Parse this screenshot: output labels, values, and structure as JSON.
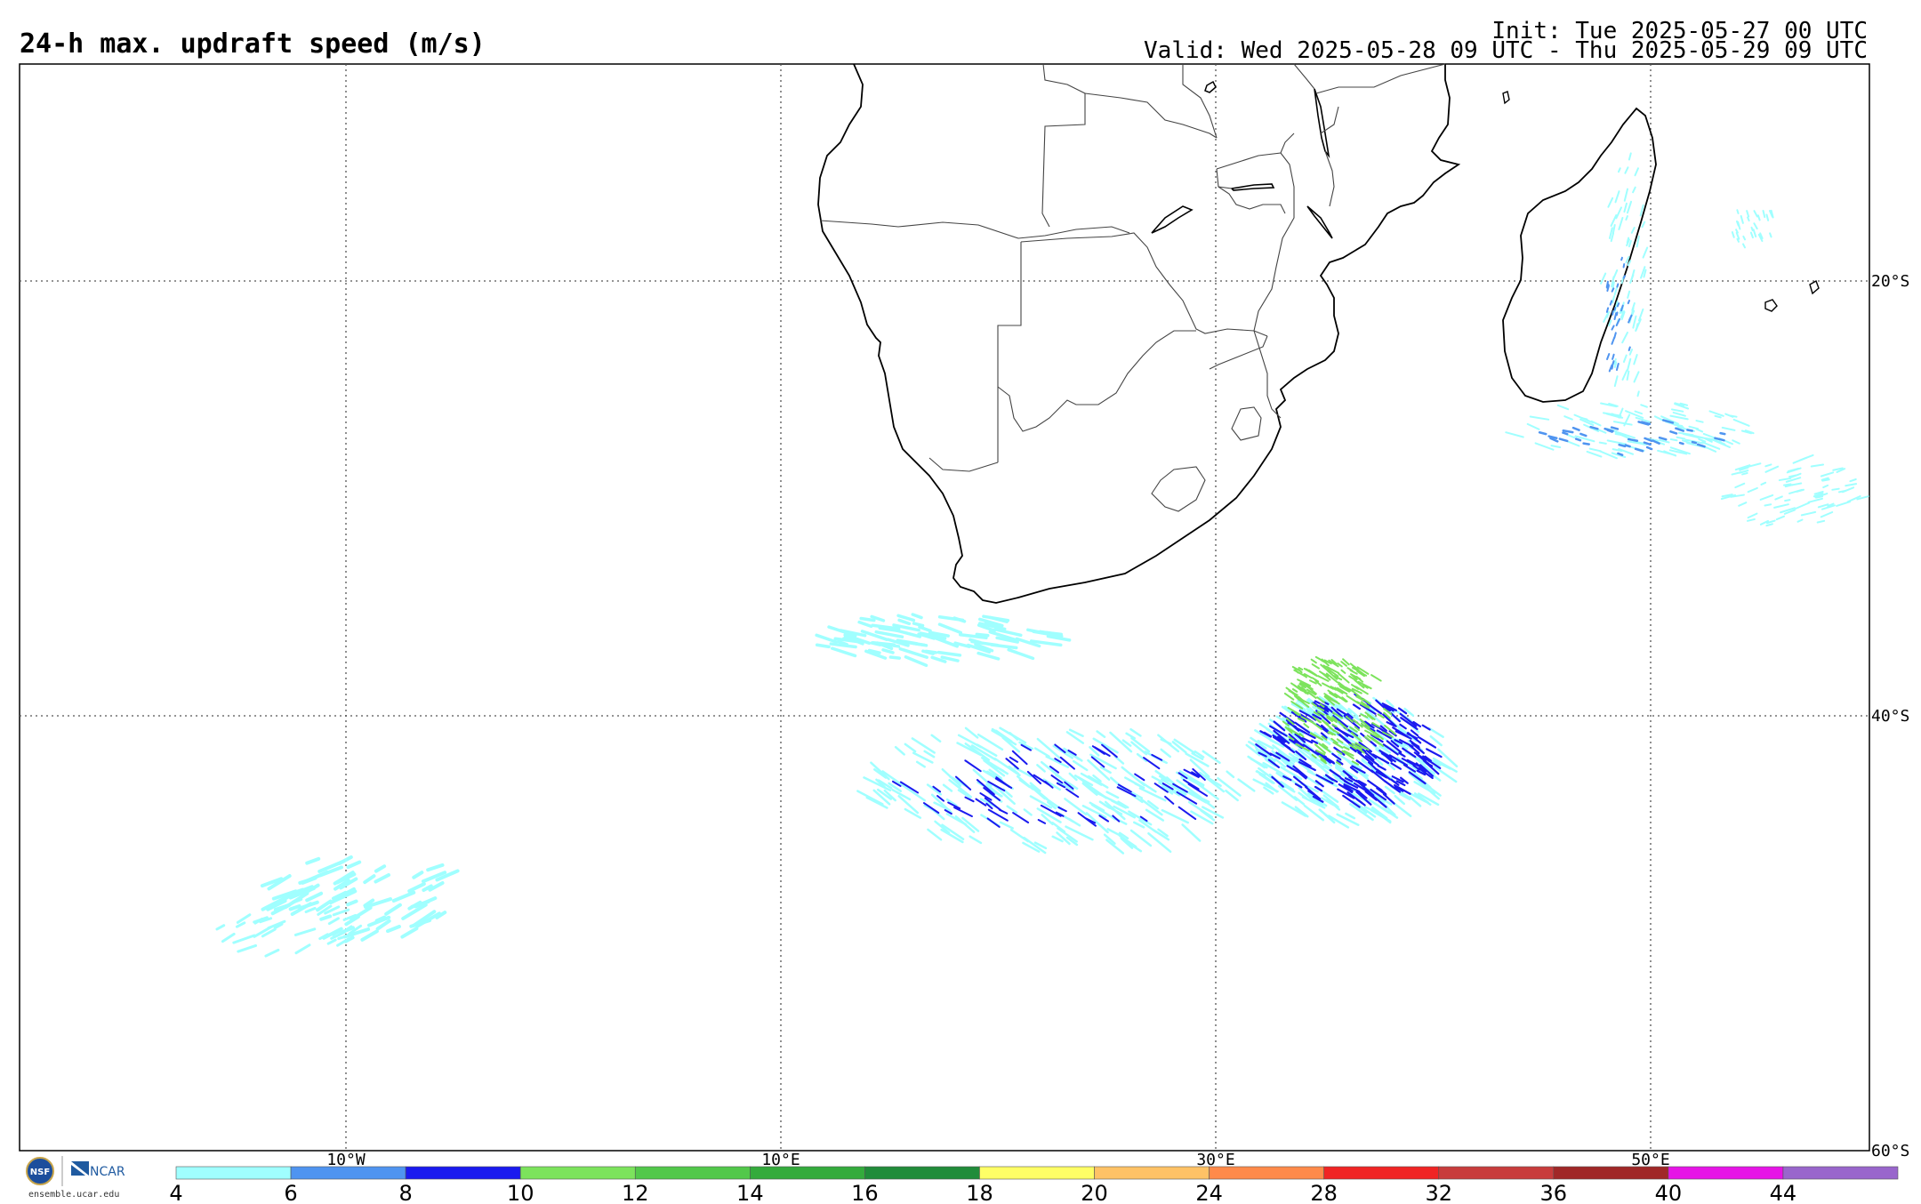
{
  "header": {
    "title": "24-h max. updraft speed (m/s)",
    "init": "Init: Tue 2025-05-27 00 UTC",
    "valid": "Valid: Wed 2025-05-28 09 UTC - Thu 2025-05-29 09 UTC"
  },
  "map": {
    "lon_labels": [
      "10°W",
      "10°E",
      "30°E",
      "50°E"
    ],
    "lat_labels": [
      "20°S",
      "40°S",
      "60°S"
    ]
  },
  "colorbar": {
    "ticks": [
      "4",
      "6",
      "8",
      "10",
      "12",
      "14",
      "16",
      "18",
      "20",
      "24",
      "28",
      "32",
      "36",
      "40",
      "44"
    ],
    "colors": [
      "#a0ffff",
      "#4f94f0",
      "#1a1aef",
      "#7ce35c",
      "#52c84a",
      "#34ab3c",
      "#208c3a",
      "#ffff66",
      "#ffc266",
      "#ff8a4a",
      "#f02424",
      "#c83c3c",
      "#a02828",
      "#e614e6",
      "#9966cc"
    ]
  },
  "logos": {
    "nsf": "NSF",
    "ncar": "NCAR",
    "site": "ensemble.ucar.edu"
  },
  "colors": {
    "light_cyan": "#a0ffff",
    "blue": "#1a1aef",
    "mid_blue": "#4f94f0",
    "green": "#7ce35c"
  }
}
